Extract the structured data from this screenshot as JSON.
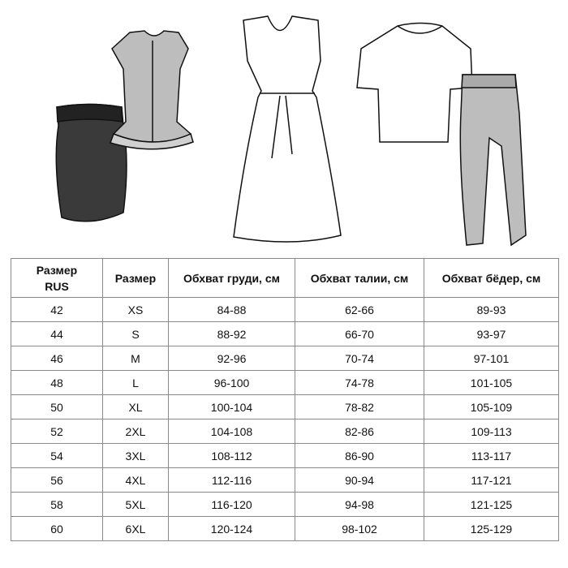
{
  "illustrations": [
    "pencil-skirt",
    "ruffle-blouse",
    "v-neck-dress",
    "raglan-tshirt",
    "cuffed-trousers"
  ],
  "colors": {
    "skirt": "#3a3a3a",
    "blouse": "#bdbdbd",
    "pants": "#bdbdbd",
    "border": "#8a8a8a"
  },
  "table": {
    "headers": [
      "Размер RUS",
      "Размер",
      "Обхват груди, см",
      "Обхват талии, см",
      "Обхват бёдер, см"
    ],
    "rows": [
      [
        "42",
        "XS",
        "84-88",
        "62-66",
        "89-93"
      ],
      [
        "44",
        "S",
        "88-92",
        "66-70",
        "93-97"
      ],
      [
        "46",
        "M",
        "92-96",
        "70-74",
        "97-101"
      ],
      [
        "48",
        "L",
        "96-100",
        "74-78",
        "101-105"
      ],
      [
        "50",
        "XL",
        "100-104",
        "78-82",
        "105-109"
      ],
      [
        "52",
        "2XL",
        "104-108",
        "82-86",
        "109-113"
      ],
      [
        "54",
        "3XL",
        "108-112",
        "86-90",
        "113-117"
      ],
      [
        "56",
        "4XL",
        "112-116",
        "90-94",
        "117-121"
      ],
      [
        "58",
        "5XL",
        "116-120",
        "94-98",
        "121-125"
      ],
      [
        "60",
        "6XL",
        "120-124",
        "98-102",
        "125-129"
      ]
    ]
  }
}
